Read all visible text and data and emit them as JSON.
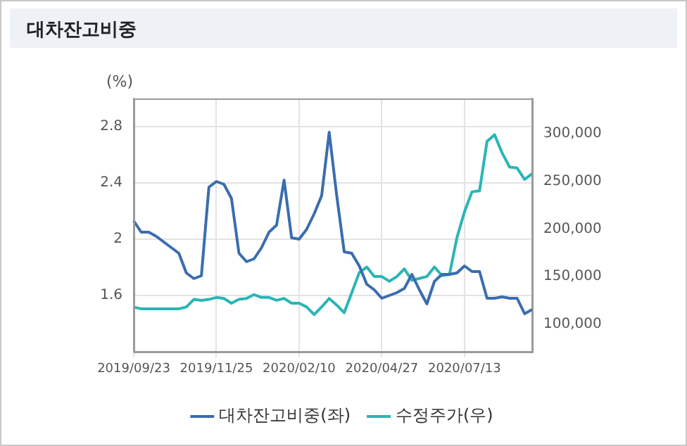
{
  "chart_data": {
    "type": "line",
    "title": "대차잔고비중",
    "ylabel": "(%)",
    "categories": [
      "2019/09/23",
      null,
      null,
      null,
      null,
      null,
      null,
      null,
      null,
      null,
      null,
      "2019/11/25",
      null,
      null,
      null,
      null,
      null,
      null,
      null,
      null,
      null,
      null,
      "2020/02/10",
      null,
      null,
      null,
      null,
      null,
      null,
      null,
      null,
      null,
      null,
      "2020/04/27",
      null,
      null,
      null,
      null,
      null,
      null,
      null,
      null,
      null,
      null,
      "2020/07/13",
      null,
      null,
      null,
      null,
      null,
      null,
      null,
      null,
      null
    ],
    "series": [
      {
        "name": "대차잔고비중(좌)",
        "color": "#3a6db0",
        "values": [
          2.13,
          2.05,
          2.05,
          2.02,
          1.98,
          1.94,
          1.9,
          1.76,
          1.72,
          1.74,
          2.37,
          2.41,
          2.39,
          2.29,
          1.9,
          1.84,
          1.86,
          1.94,
          2.05,
          2.1,
          2.42,
          2.01,
          2.0,
          2.07,
          2.18,
          2.31,
          2.76,
          2.31,
          1.91,
          1.9,
          1.81,
          1.68,
          1.64,
          1.58,
          1.6,
          1.62,
          1.65,
          1.75,
          1.64,
          1.54,
          1.7,
          1.75,
          1.75,
          1.76,
          1.81,
          1.77,
          1.77,
          1.58,
          1.58,
          1.59,
          1.58,
          1.58,
          1.47,
          1.5
        ]
      },
      {
        "name": "수정주가(우)",
        "color": "#2bb5b5",
        "axis": "y2",
        "values": [
          118000,
          116000,
          116000,
          116000,
          116000,
          116000,
          116000,
          118000,
          126000,
          125000,
          126000,
          128000,
          127000,
          122000,
          126000,
          127000,
          131000,
          128000,
          128000,
          125000,
          127000,
          122000,
          122000,
          118000,
          110000,
          118000,
          127000,
          120000,
          112000,
          133000,
          154000,
          160000,
          150000,
          150000,
          145000,
          150000,
          158000,
          146000,
          148000,
          150000,
          160000,
          151000,
          152000,
          191000,
          218000,
          239000,
          240000,
          292000,
          299000,
          280000,
          265000,
          264000,
          252000,
          258000
        ]
      }
    ],
    "ylim": [
      1.2,
      3.0
    ],
    "yticks": [
      1.6,
      2,
      2.4,
      2.8
    ],
    "y2lim": [
      71000,
      337000
    ],
    "y2ticks": [
      {
        "value": 100000,
        "label": "100,000"
      },
      {
        "value": 150000,
        "label": "150,000"
      },
      {
        "value": 200000,
        "label": "200,000"
      },
      {
        "value": 250000,
        "label": "250,000"
      },
      {
        "value": 300000,
        "label": "300,000"
      }
    ],
    "grid": true,
    "legend": "bottom",
    "marker": "none",
    "line_style": "solid"
  }
}
